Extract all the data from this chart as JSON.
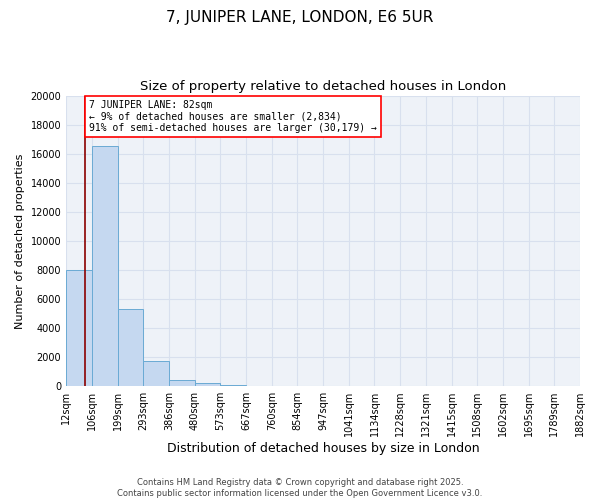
{
  "title": "7, JUNIPER LANE, LONDON, E6 5UR",
  "subtitle": "Size of property relative to detached houses in London",
  "xlabel": "Distribution of detached houses by size in London",
  "ylabel": "Number of detached properties",
  "bar_color": "#c5d8f0",
  "bar_edge_color": "#6aaad4",
  "bar_values": [
    8000,
    16500,
    5300,
    1700,
    400,
    200,
    60,
    30,
    10,
    5,
    3,
    2,
    1,
    1,
    1,
    1,
    1,
    1,
    1,
    1
  ],
  "bin_labels": [
    "12sqm",
    "106sqm",
    "199sqm",
    "293sqm",
    "386sqm",
    "480sqm",
    "573sqm",
    "667sqm",
    "760sqm",
    "854sqm",
    "947sqm",
    "1041sqm",
    "1134sqm",
    "1228sqm",
    "1321sqm",
    "1415sqm",
    "1508sqm",
    "1602sqm",
    "1695sqm",
    "1789sqm",
    "1882sqm"
  ],
  "n_bars": 20,
  "ylim": [
    0,
    20000
  ],
  "yticks": [
    0,
    2000,
    4000,
    6000,
    8000,
    10000,
    12000,
    14000,
    16000,
    18000,
    20000
  ],
  "annotation_text": "7 JUNIPER LANE: 82sqm\n← 9% of detached houses are smaller (2,834)\n91% of semi-detached houses are larger (30,179) →",
  "footer_text": "Contains HM Land Registry data © Crown copyright and database right 2025.\nContains public sector information licensed under the Open Government Licence v3.0.",
  "bg_color": "#eef2f8",
  "grid_color": "#d8e0ee",
  "title_fontsize": 11,
  "subtitle_fontsize": 9.5,
  "tick_fontsize": 7,
  "ylabel_fontsize": 8,
  "xlabel_fontsize": 9
}
